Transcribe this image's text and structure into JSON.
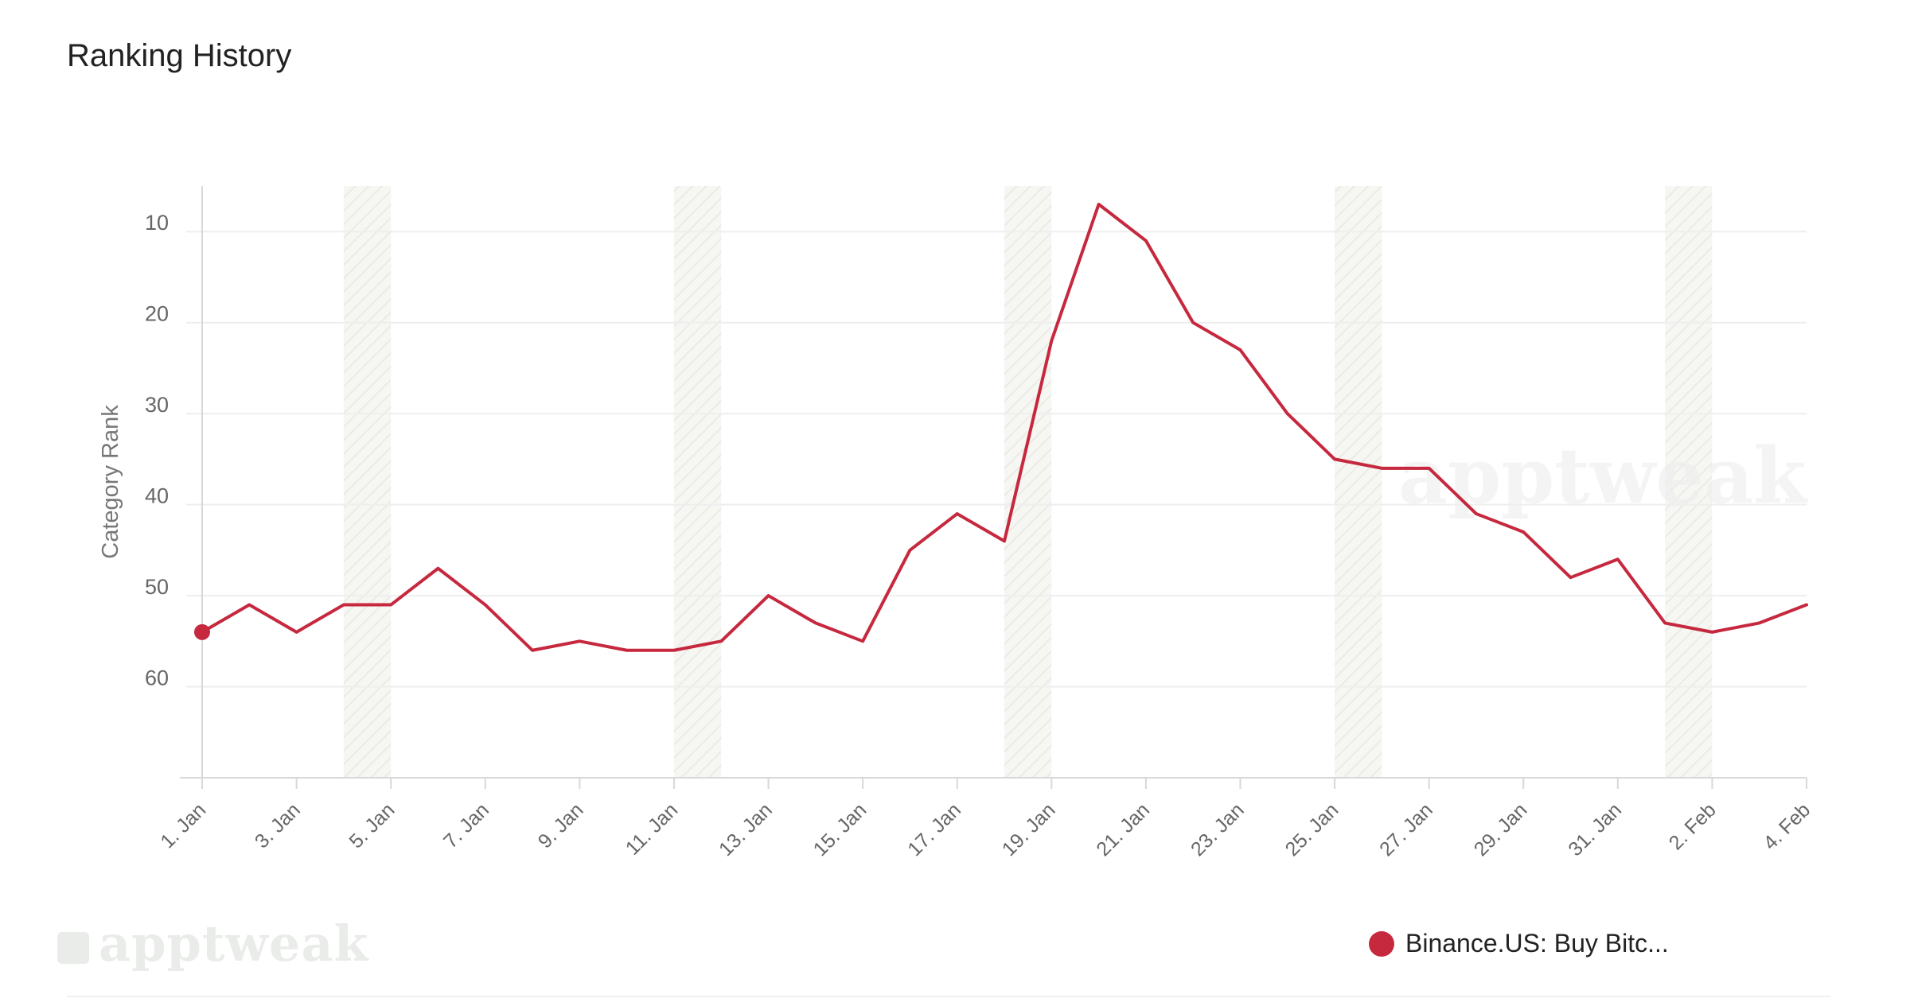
{
  "header": {
    "title": "Ranking History"
  },
  "watermarks": {
    "bottom": "apptweak",
    "plot": "apptweak"
  },
  "legend": {
    "label": "Binance.US: Buy Bitc..."
  },
  "colors": {
    "series": "#c6283e",
    "axis": "#d8d8d8",
    "grid": "#eeeeee",
    "tick_text": "#666666",
    "shade": "#f3f3f0",
    "watermark": "#e9ece9"
  },
  "chart_data": {
    "type": "line",
    "title": "Ranking History",
    "xlabel": "",
    "ylabel": "Category Rank",
    "y_inverted": true,
    "ylim": [
      5,
      70
    ],
    "yticks": [
      10,
      20,
      30,
      40,
      50,
      60
    ],
    "xtick_labels": [
      "1. Jan",
      "3. Jan",
      "5. Jan",
      "7. Jan",
      "9. Jan",
      "11. Jan",
      "13. Jan",
      "15. Jan",
      "17. Jan",
      "19. Jan",
      "21. Jan",
      "23. Jan",
      "25. Jan",
      "27. Jan",
      "29. Jan",
      "31. Jan",
      "2. Feb",
      "4. Feb"
    ],
    "weekend_bands": [
      [
        4,
        5
      ],
      [
        11,
        12
      ],
      [
        18,
        19
      ],
      [
        25,
        26
      ],
      [
        32,
        33
      ]
    ],
    "series": [
      {
        "name": "Binance.US: Buy Bitc...",
        "x": [
          1,
          2,
          3,
          4,
          5,
          6,
          7,
          8,
          9,
          10,
          11,
          12,
          13,
          14,
          15,
          16,
          17,
          18,
          19,
          20,
          21,
          22,
          23,
          24,
          25,
          26,
          27,
          28,
          29,
          30,
          31,
          32,
          33,
          34,
          35
        ],
        "values": [
          54,
          51,
          54,
          51,
          51,
          47,
          51,
          56,
          55,
          56,
          56,
          55,
          50,
          53,
          55,
          45,
          41,
          44,
          22,
          7,
          11,
          20,
          23,
          30,
          35,
          36,
          36,
          41,
          43,
          48,
          46,
          53,
          54,
          53,
          51
        ]
      }
    ]
  }
}
